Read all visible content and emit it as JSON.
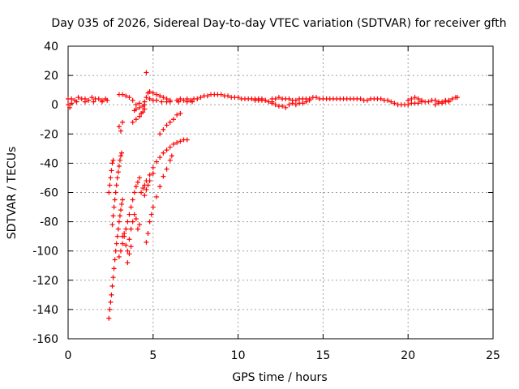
{
  "chart_data": {
    "type": "scatter",
    "title": "Day 035 of 2026, Sidereal Day-to-day VTEC variation (SDTVAR) for receiver gfth",
    "xlabel": "GPS time / hours",
    "ylabel": "SDTVAR / TECUs",
    "xlim": [
      0,
      25
    ],
    "ylim": [
      -160,
      40
    ],
    "xticks": [
      0,
      5,
      10,
      15,
      20,
      25
    ],
    "yticks": [
      -160,
      -140,
      -120,
      -100,
      -80,
      -60,
      -40,
      -20,
      0,
      20,
      40
    ],
    "xtick_labels": [
      "0",
      "5",
      "10",
      "15",
      "20",
      "25"
    ],
    "ytick_labels": [
      "-160",
      "-140",
      "-120",
      "-100",
      "-80",
      "-60",
      "-40",
      "-20",
      "0",
      "20",
      "40"
    ],
    "grid": true,
    "marker": "+",
    "series": [
      {
        "name": "SDTVAR",
        "color": "#ff0000",
        "points": [
          [
            0.0,
            4
          ],
          [
            0.2,
            4
          ],
          [
            0.4,
            3
          ],
          [
            0.6,
            5
          ],
          [
            0.8,
            4
          ],
          [
            1.0,
            4
          ],
          [
            1.2,
            3
          ],
          [
            1.4,
            5
          ],
          [
            1.6,
            4
          ],
          [
            1.8,
            4
          ],
          [
            2.0,
            3
          ],
          [
            2.2,
            4
          ],
          [
            2.3,
            3
          ],
          [
            0.0,
            0
          ],
          [
            0.1,
            -2
          ],
          [
            0.2,
            1
          ],
          [
            0.5,
            2
          ],
          [
            1.0,
            2
          ],
          [
            1.5,
            2
          ],
          [
            2.0,
            2
          ],
          [
            2.4,
            -146
          ],
          [
            2.45,
            -140
          ],
          [
            2.5,
            -135
          ],
          [
            2.55,
            -130
          ],
          [
            2.6,
            -124
          ],
          [
            2.65,
            -118
          ],
          [
            2.7,
            -112
          ],
          [
            2.75,
            -106
          ],
          [
            2.8,
            -100
          ],
          [
            2.85,
            -95
          ],
          [
            2.9,
            -90
          ],
          [
            2.95,
            -85
          ],
          [
            3.0,
            -80
          ],
          [
            3.05,
            -76
          ],
          [
            3.1,
            -72
          ],
          [
            3.15,
            -68
          ],
          [
            3.2,
            -65
          ],
          [
            2.4,
            -60
          ],
          [
            2.45,
            -55
          ],
          [
            2.5,
            -50
          ],
          [
            2.55,
            -45
          ],
          [
            2.6,
            -40
          ],
          [
            2.65,
            -38
          ],
          [
            2.6,
            -82
          ],
          [
            2.65,
            -76
          ],
          [
            2.7,
            -70
          ],
          [
            2.75,
            -65
          ],
          [
            2.8,
            -60
          ],
          [
            2.85,
            -55
          ],
          [
            2.9,
            -50
          ],
          [
            2.95,
            -46
          ],
          [
            3.0,
            -42
          ],
          [
            3.05,
            -38
          ],
          [
            3.1,
            -35
          ],
          [
            3.15,
            -33
          ],
          [
            3.0,
            -104
          ],
          [
            3.1,
            -100
          ],
          [
            3.2,
            -95
          ],
          [
            3.3,
            -90
          ],
          [
            3.4,
            -85
          ],
          [
            3.5,
            -80
          ],
          [
            3.6,
            -75
          ],
          [
            3.7,
            -70
          ],
          [
            3.8,
            -65
          ],
          [
            3.9,
            -60
          ],
          [
            4.0,
            -56
          ],
          [
            4.1,
            -53
          ],
          [
            4.2,
            -50
          ],
          [
            3.2,
            -90
          ],
          [
            3.3,
            -88
          ],
          [
            3.4,
            -96
          ],
          [
            3.5,
            -100
          ],
          [
            3.6,
            -92
          ],
          [
            3.7,
            -85
          ],
          [
            3.8,
            -80
          ],
          [
            3.9,
            -75
          ],
          [
            4.0,
            -78
          ],
          [
            4.1,
            -85
          ],
          [
            4.2,
            -82
          ],
          [
            3.5,
            -108
          ],
          [
            3.6,
            -102
          ],
          [
            3.7,
            -97
          ],
          [
            3.0,
            -15
          ],
          [
            3.1,
            -18
          ],
          [
            3.2,
            -12
          ],
          [
            3.0,
            7
          ],
          [
            3.2,
            7
          ],
          [
            3.4,
            6
          ],
          [
            3.6,
            5
          ],
          [
            3.8,
            3
          ],
          [
            3.8,
            -12
          ],
          [
            4.0,
            -10
          ],
          [
            4.2,
            -8
          ],
          [
            4.3,
            -6
          ],
          [
            4.4,
            -5
          ],
          [
            4.5,
            -3
          ],
          [
            3.9,
            -4
          ],
          [
            4.0,
            -3
          ],
          [
            4.2,
            -2
          ],
          [
            4.4,
            -1
          ],
          [
            4.5,
            0
          ],
          [
            4.0,
            0
          ],
          [
            4.2,
            1
          ],
          [
            4.5,
            2
          ],
          [
            4.3,
            -60
          ],
          [
            4.4,
            -57
          ],
          [
            4.5,
            -55
          ],
          [
            4.6,
            -52
          ],
          [
            4.8,
            -48
          ],
          [
            5.0,
            -43
          ],
          [
            5.2,
            -39
          ],
          [
            5.4,
            -36
          ],
          [
            5.6,
            -33
          ],
          [
            5.8,
            -31
          ],
          [
            6.0,
            -29
          ],
          [
            6.2,
            -27
          ],
          [
            6.4,
            -26
          ],
          [
            6.6,
            -25
          ],
          [
            6.8,
            -24
          ],
          [
            7.0,
            -24
          ],
          [
            4.5,
            -62
          ],
          [
            4.6,
            -58
          ],
          [
            4.7,
            -55
          ],
          [
            4.8,
            -52
          ],
          [
            5.0,
            -47
          ],
          [
            4.6,
            -94
          ],
          [
            4.7,
            -88
          ],
          [
            4.8,
            -80
          ],
          [
            4.9,
            -75
          ],
          [
            5.0,
            -70
          ],
          [
            5.2,
            -63
          ],
          [
            5.4,
            -56
          ],
          [
            5.6,
            -49
          ],
          [
            5.8,
            -44
          ],
          [
            6.0,
            -38
          ],
          [
            6.1,
            -35
          ],
          [
            4.6,
            22
          ],
          [
            4.7,
            8
          ],
          [
            4.8,
            9
          ],
          [
            5.0,
            8
          ],
          [
            5.2,
            7
          ],
          [
            5.4,
            6
          ],
          [
            5.6,
            5
          ],
          [
            5.8,
            4
          ],
          [
            6.0,
            3
          ],
          [
            4.6,
            5
          ],
          [
            4.8,
            4
          ],
          [
            5.0,
            3
          ],
          [
            5.2,
            3
          ],
          [
            5.5,
            2
          ],
          [
            5.8,
            2
          ],
          [
            6.0,
            2
          ],
          [
            6.5,
            2
          ],
          [
            7.0,
            2
          ],
          [
            7.3,
            2
          ],
          [
            5.4,
            -20
          ],
          [
            5.6,
            -17
          ],
          [
            5.8,
            -14
          ],
          [
            6.0,
            -12
          ],
          [
            6.2,
            -10
          ],
          [
            6.4,
            -7
          ],
          [
            6.6,
            -6
          ],
          [
            6.4,
            3
          ],
          [
            6.6,
            4
          ],
          [
            6.8,
            3
          ],
          [
            7.0,
            4
          ],
          [
            7.2,
            3
          ],
          [
            7.4,
            4
          ],
          [
            7.6,
            4
          ],
          [
            7.8,
            5
          ],
          [
            8.0,
            6
          ],
          [
            8.2,
            6
          ],
          [
            8.4,
            7
          ],
          [
            8.6,
            7
          ],
          [
            8.8,
            7
          ],
          [
            9.0,
            7
          ],
          [
            9.2,
            6
          ],
          [
            9.4,
            6
          ],
          [
            9.6,
            5
          ],
          [
            9.8,
            5
          ],
          [
            10.0,
            5
          ],
          [
            10.2,
            4
          ],
          [
            10.4,
            4
          ],
          [
            10.6,
            4
          ],
          [
            10.8,
            4
          ],
          [
            11.0,
            4
          ],
          [
            11.2,
            3
          ],
          [
            11.4,
            3
          ],
          [
            11.6,
            3
          ],
          [
            11.8,
            2
          ],
          [
            12.0,
            2
          ],
          [
            11.0,
            3
          ],
          [
            11.2,
            4
          ],
          [
            11.4,
            4
          ],
          [
            11.6,
            3
          ],
          [
            12.0,
            1
          ],
          [
            12.2,
            0
          ],
          [
            12.4,
            -1
          ],
          [
            12.6,
            -1
          ],
          [
            12.8,
            -2
          ],
          [
            13.0,
            0
          ],
          [
            13.2,
            1
          ],
          [
            12.0,
            4
          ],
          [
            12.2,
            4
          ],
          [
            12.4,
            5
          ],
          [
            12.6,
            4
          ],
          [
            12.8,
            4
          ],
          [
            13.0,
            4
          ],
          [
            13.2,
            3
          ],
          [
            13.4,
            3
          ],
          [
            13.6,
            4
          ],
          [
            13.8,
            4
          ],
          [
            14.0,
            4
          ],
          [
            13.4,
            0
          ],
          [
            13.6,
            1
          ],
          [
            13.8,
            1
          ],
          [
            14.0,
            2
          ],
          [
            14.2,
            3
          ],
          [
            14.2,
            4
          ],
          [
            14.4,
            5
          ],
          [
            14.6,
            5
          ],
          [
            14.8,
            4
          ],
          [
            15.0,
            4
          ],
          [
            15.2,
            4
          ],
          [
            15.4,
            4
          ],
          [
            15.6,
            4
          ],
          [
            15.8,
            4
          ],
          [
            16.0,
            4
          ],
          [
            16.2,
            4
          ],
          [
            16.4,
            4
          ],
          [
            16.6,
            4
          ],
          [
            16.8,
            4
          ],
          [
            17.0,
            4
          ],
          [
            17.2,
            4
          ],
          [
            17.4,
            3
          ],
          [
            17.6,
            3
          ],
          [
            17.8,
            4
          ],
          [
            18.0,
            4
          ],
          [
            18.2,
            4
          ],
          [
            18.4,
            4
          ],
          [
            18.6,
            3
          ],
          [
            18.8,
            3
          ],
          [
            19.0,
            2
          ],
          [
            19.2,
            1
          ],
          [
            19.4,
            0
          ],
          [
            19.6,
            0
          ],
          [
            19.8,
            0
          ],
          [
            20.0,
            0
          ],
          [
            20.2,
            1
          ],
          [
            20.4,
            1
          ],
          [
            20.0,
            3
          ],
          [
            20.2,
            4
          ],
          [
            20.4,
            5
          ],
          [
            20.6,
            4
          ],
          [
            20.8,
            3
          ],
          [
            20.6,
            1
          ],
          [
            20.8,
            2
          ],
          [
            21.0,
            2
          ],
          [
            21.2,
            2
          ],
          [
            21.4,
            3
          ],
          [
            21.6,
            3
          ],
          [
            21.8,
            2
          ],
          [
            22.0,
            2
          ],
          [
            22.2,
            3
          ],
          [
            22.4,
            3
          ],
          [
            22.6,
            4
          ],
          [
            22.8,
            5
          ],
          [
            22.9,
            5
          ],
          [
            21.6,
            0
          ],
          [
            21.8,
            1
          ],
          [
            22.0,
            1
          ],
          [
            22.2,
            2
          ],
          [
            22.4,
            2
          ]
        ]
      }
    ]
  }
}
